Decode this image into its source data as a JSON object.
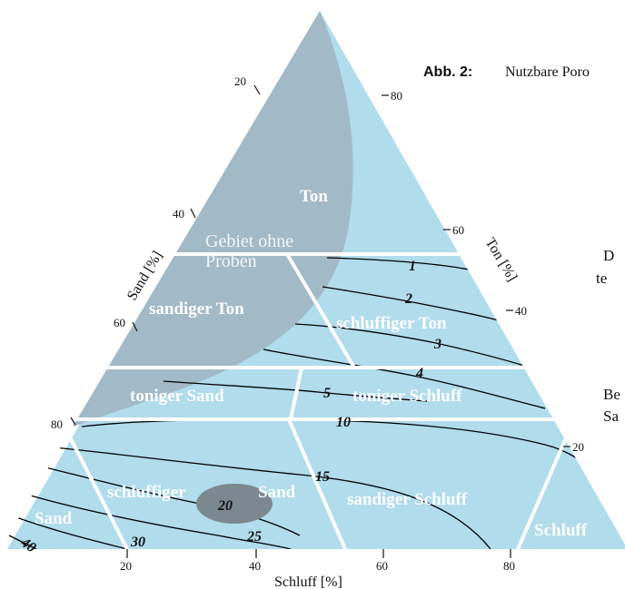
{
  "caption": {
    "label": "Abb. 2:",
    "text": "Nutzbare Poro"
  },
  "axes": {
    "sand": "Sand [%]",
    "ton": "Ton [%]",
    "schluff": "Schluff [%]",
    "sand_ticks": [
      "20",
      "40",
      "60",
      "80"
    ],
    "ton_ticks": [
      "80",
      "60",
      "40",
      "20"
    ],
    "schluff_ticks": [
      "20",
      "40",
      "60",
      "80"
    ]
  },
  "regions": {
    "no_samples_1": "Gebiet ohne",
    "no_samples_2": "Proben",
    "ton": "Ton",
    "sandiger_ton": "sandiger Ton",
    "schluffiger_ton": "schluffiger Ton",
    "toniger_sand": "toniger Sand",
    "toniger_schluff": "toniger Schluff",
    "schluffiger_sand_1": "schluffiger",
    "schluffiger_sand_2": "Sand",
    "sandiger_schluff": "sandiger Schluff",
    "sand": "Sand",
    "schluff": "Schluff"
  },
  "contours": [
    "1",
    "2",
    "3",
    "4",
    "5",
    "10",
    "15",
    "20",
    "25",
    "30",
    "40"
  ],
  "side_text": {
    "line1": "D",
    "line2": "te",
    "line3": "Be",
    "line4": "Sa"
  },
  "colors": {
    "triangle": "#b0dcec",
    "gray_area": "#9fb8c6",
    "marker": "#7c8890"
  }
}
